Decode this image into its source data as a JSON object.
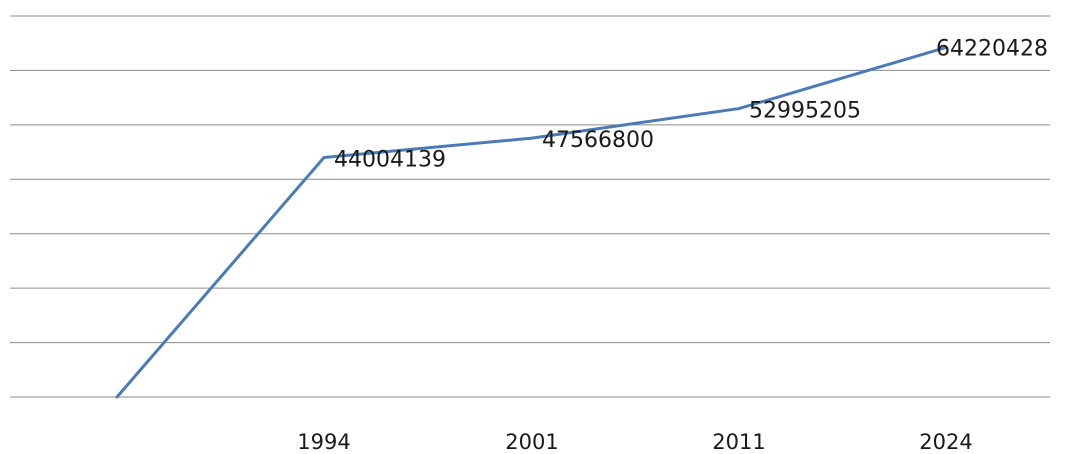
{
  "chart_data": {
    "type": "line",
    "title": "",
    "xlabel": "",
    "ylabel": "",
    "categories": [
      "",
      "1994",
      "2001",
      "2011",
      "2024"
    ],
    "series": [
      {
        "values": [
          0,
          44004139,
          47566800,
          52995205,
          64220428
        ],
        "data_labels": [
          "",
          "44004139",
          "47566800",
          "52995205",
          "64220428"
        ],
        "color": "#4a7bb7"
      }
    ],
    "ylim": [
      0,
      70000000
    ],
    "grid": true,
    "legend": "none"
  }
}
